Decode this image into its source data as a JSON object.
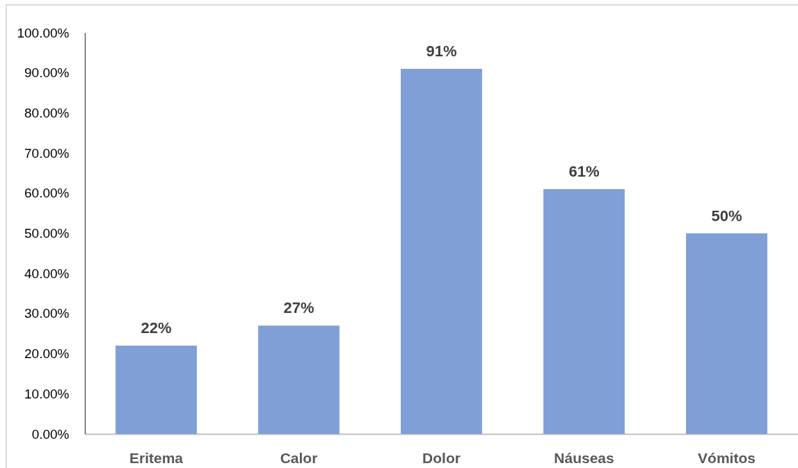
{
  "chart_data": {
    "type": "bar",
    "categories": [
      "Eritema",
      "Calor",
      "Dolor",
      "Náuseas",
      "Vómitos"
    ],
    "values": [
      22,
      27,
      91,
      61,
      50
    ],
    "value_labels": [
      "22%",
      "27%",
      "91%",
      "61%",
      "50%"
    ],
    "color": "#7f9fd6",
    "ylim": [
      0,
      100
    ],
    "yticks": [
      {
        "value": 0,
        "label": "0.00%"
      },
      {
        "value": 10,
        "label": "10.00%"
      },
      {
        "value": 20,
        "label": "20.00%"
      },
      {
        "value": 30,
        "label": "30.00%"
      },
      {
        "value": 40,
        "label": "40.00%"
      },
      {
        "value": 50,
        "label": "50.00%"
      },
      {
        "value": 60,
        "label": "60.00%"
      },
      {
        "value": 70,
        "label": "70.00%"
      },
      {
        "value": 80,
        "label": "80.00%"
      },
      {
        "value": 90,
        "label": "90.00%"
      },
      {
        "value": 100,
        "label": "100.00%"
      }
    ]
  }
}
